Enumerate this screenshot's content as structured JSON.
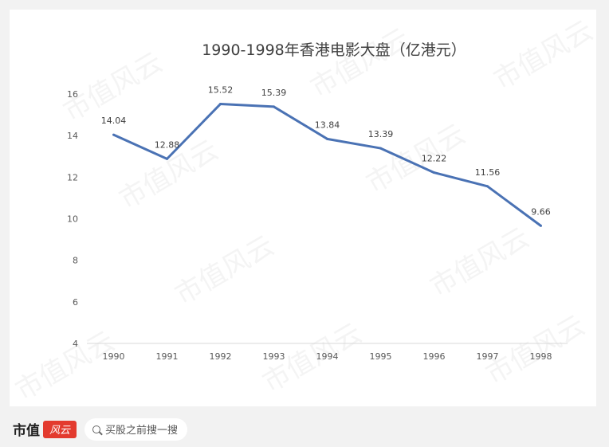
{
  "chart_data": {
    "type": "line",
    "title": "1990-1998年香港电影大盘（亿港元）",
    "categories": [
      "1990",
      "1991",
      "1992",
      "1993",
      "1994",
      "1995",
      "1996",
      "1997",
      "1998"
    ],
    "series": [
      {
        "values": [
          14.04,
          12.88,
          15.52,
          15.39,
          13.84,
          13.39,
          12.22,
          11.56,
          9.66
        ]
      }
    ],
    "data_labels": [
      "14.04",
      "12.88",
      "15.52",
      "15.39",
      "13.84",
      "13.39",
      "12.22",
      "11.56",
      "9.66"
    ],
    "yticks": [
      "4",
      "6",
      "8",
      "10",
      "12",
      "14",
      "16"
    ],
    "ylim": [
      4,
      16
    ],
    "grid": false,
    "line_color": "#4a72b4"
  },
  "watermark_text": "市值风云",
  "footer": {
    "brand": "市值",
    "logo_text": "风云",
    "search_placeholder": "买股之前搜一搜"
  }
}
